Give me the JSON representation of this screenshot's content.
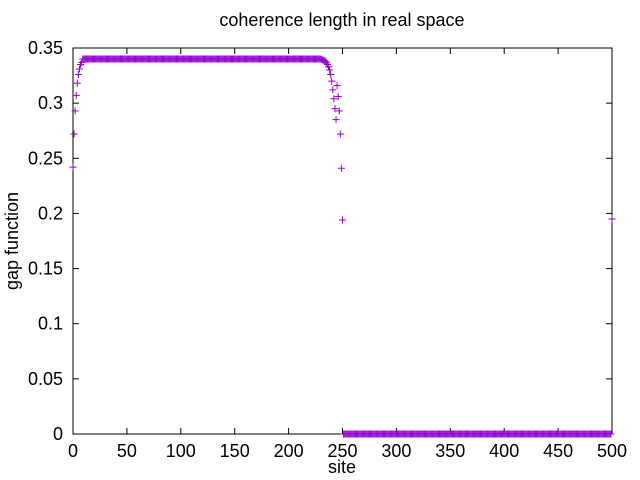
{
  "chart_data": {
    "type": "scatter",
    "title": "coherence length in real space",
    "xlabel": "site",
    "ylabel": "gap function",
    "xlim": [
      0,
      500
    ],
    "ylim": [
      0,
      0.35
    ],
    "grid": false,
    "legend": "none",
    "marker": "+",
    "color": "#9400d3",
    "x_ticks": [
      "0",
      "50",
      "100",
      "150",
      "200",
      "250",
      "300",
      "350",
      "400",
      "450",
      "500"
    ],
    "y_ticks": [
      "0",
      "0.05",
      "0.1",
      "0.15",
      "0.2",
      "0.25",
      "0.3",
      "0.35"
    ],
    "segments": [
      {
        "x_start": 0,
        "x_end": 8,
        "values": [
          0.242,
          0.272,
          0.293,
          0.307,
          0.318,
          0.326,
          0.331,
          0.335,
          0.337
        ]
      },
      {
        "x_start": 9,
        "x_end": 230,
        "constant": 0.34
      },
      {
        "x_start": 231,
        "x_end": 249,
        "values": [
          0.3395,
          0.339,
          0.3385,
          0.338,
          0.337,
          0.335,
          0.333,
          0.33,
          0.326,
          0.32,
          0.312,
          0.304,
          0.295,
          0.285,
          0.316,
          0.306,
          0.293,
          0.272,
          0.241
        ]
      },
      {
        "x_start": 250,
        "x_end": 250,
        "values": [
          0.194
        ]
      },
      {
        "x_start": 251,
        "x_end": 499,
        "constant": 0.0
      },
      {
        "x_start": 500,
        "x_end": 500,
        "values": [
          0.195
        ]
      }
    ]
  }
}
